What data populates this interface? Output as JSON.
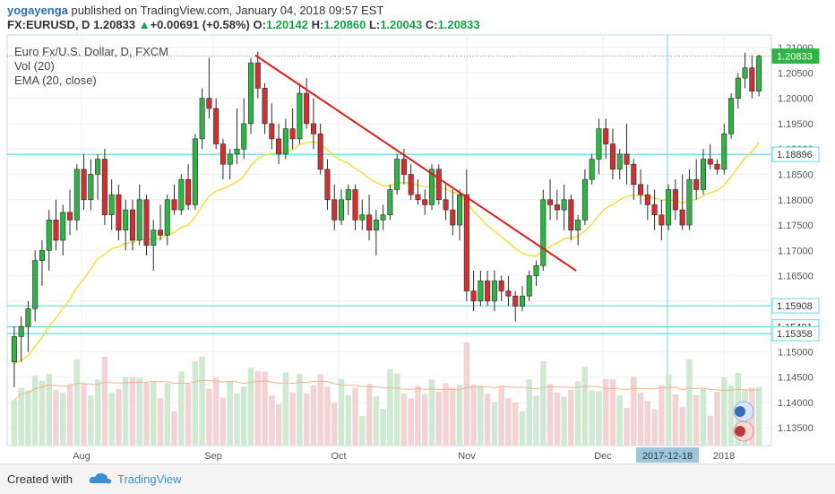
{
  "header": {
    "publisher": "yogayenga",
    "published_text": "published on TradingView.com, January 04, 2018 09:57 EST",
    "symbol": "FX:EURUSD, D",
    "last": "1.20833",
    "arrow": "▲",
    "change": "+0.00691 (+0.58%)",
    "o_label": "O:",
    "o": "1.20142",
    "h_label": "H:",
    "h": "1.20860",
    "l_label": "L:",
    "l": "1.20043",
    "c_label": "C:",
    "c": "1.20833"
  },
  "legend": {
    "title": "Euro Fx/U.S. Dollar, D, FXCM",
    "vol": "Vol (20)",
    "ema": "EMA (20, close)"
  },
  "footer": {
    "created": "Created with",
    "brand": "TradingView"
  },
  "colors": {
    "up": "#2fb344",
    "down": "#d23030",
    "ema": "#f2e04a",
    "hline": "#55e0e0",
    "trend": "#e01b1b",
    "volma": "#f0b48a"
  },
  "chart_data": {
    "type": "candlestick",
    "symbol": "EURUSD",
    "y_ticks": [
      "1.21000",
      "1.20500",
      "1.20000",
      "1.19500",
      "1.19000",
      "1.18500",
      "1.18000",
      "1.17500",
      "1.17000",
      "1.16500",
      "1.16000",
      "1.15500",
      "1.15000",
      "1.14500",
      "1.14000",
      "1.13500"
    ],
    "x_ticks": [
      "Aug",
      "Sep",
      "Oct",
      "Nov",
      "Dec",
      "2018"
    ],
    "x_highlight": "2017-12-18",
    "price_labels": [
      "1.20833",
      "1.18896",
      "1.15908",
      "1.15491",
      "1.15358"
    ],
    "horizontal_levels": [
      1.18896,
      1.15908,
      1.15491,
      1.15358
    ],
    "trendline": {
      "from": {
        "date": "2017-09-08",
        "price": 1.2085
      },
      "to": {
        "date": "2017-11-27",
        "price": 1.166
      }
    },
    "current_price": 1.20833,
    "ylim": [
      1.1315,
      1.2125
    ],
    "candles": [
      [
        1.148,
        1.155,
        1.143,
        1.153
      ],
      [
        1.153,
        1.157,
        1.148,
        1.155
      ],
      [
        1.155,
        1.16,
        1.15,
        1.1585
      ],
      [
        1.1585,
        1.17,
        1.156,
        1.168
      ],
      [
        1.168,
        1.172,
        1.163,
        1.17
      ],
      [
        1.17,
        1.178,
        1.166,
        1.176
      ],
      [
        1.176,
        1.18,
        1.17,
        1.172
      ],
      [
        1.172,
        1.179,
        1.169,
        1.1775
      ],
      [
        1.1775,
        1.182,
        1.173,
        1.176
      ],
      [
        1.176,
        1.187,
        1.174,
        1.186
      ],
      [
        1.186,
        1.189,
        1.178,
        1.18
      ],
      [
        1.18,
        1.188,
        1.178,
        1.185
      ],
      [
        1.185,
        1.189,
        1.18,
        1.188
      ],
      [
        1.188,
        1.19,
        1.175,
        1.177
      ],
      [
        1.177,
        1.184,
        1.174,
        1.181
      ],
      [
        1.181,
        1.183,
        1.172,
        1.174
      ],
      [
        1.174,
        1.18,
        1.17,
        1.178
      ],
      [
        1.178,
        1.18,
        1.17,
        1.172
      ],
      [
        1.172,
        1.183,
        1.171,
        1.18
      ],
      [
        1.18,
        1.181,
        1.169,
        1.171
      ],
      [
        1.171,
        1.176,
        1.166,
        1.174
      ],
      [
        1.174,
        1.179,
        1.172,
        1.173
      ],
      [
        1.173,
        1.181,
        1.171,
        1.18
      ],
      [
        1.18,
        1.183,
        1.177,
        1.178
      ],
      [
        1.178,
        1.185,
        1.177,
        1.184
      ],
      [
        1.184,
        1.187,
        1.178,
        1.179
      ],
      [
        1.179,
        1.193,
        1.178,
        1.192
      ],
      [
        1.192,
        1.202,
        1.19,
        1.2
      ],
      [
        1.2,
        1.208,
        1.196,
        1.198
      ],
      [
        1.198,
        1.2,
        1.19,
        1.191
      ],
      [
        1.191,
        1.192,
        1.184,
        1.187
      ],
      [
        1.187,
        1.19,
        1.184,
        1.189
      ],
      [
        1.189,
        1.198,
        1.187,
        1.19
      ],
      [
        1.19,
        1.2,
        1.188,
        1.195
      ],
      [
        1.195,
        1.208,
        1.193,
        1.207
      ],
      [
        1.207,
        1.2092,
        1.2,
        1.202
      ],
      [
        1.202,
        1.203,
        1.193,
        1.195
      ],
      [
        1.195,
        1.199,
        1.19,
        1.192
      ],
      [
        1.192,
        1.195,
        1.187,
        1.189
      ],
      [
        1.189,
        1.196,
        1.188,
        1.194
      ],
      [
        1.194,
        1.198,
        1.19,
        1.192
      ],
      [
        1.192,
        1.203,
        1.191,
        1.201
      ],
      [
        1.201,
        1.204,
        1.194,
        1.195
      ],
      [
        1.195,
        1.2,
        1.19,
        1.193
      ],
      [
        1.193,
        1.195,
        1.185,
        1.186
      ],
      [
        1.186,
        1.188,
        1.178,
        1.18
      ],
      [
        1.18,
        1.183,
        1.174,
        1.176
      ],
      [
        1.176,
        1.182,
        1.175,
        1.18
      ],
      [
        1.18,
        1.183,
        1.177,
        1.182
      ],
      [
        1.182,
        1.183,
        1.174,
        1.176
      ],
      [
        1.176,
        1.18,
        1.174,
        1.177
      ],
      [
        1.177,
        1.181,
        1.172,
        1.174
      ],
      [
        1.174,
        1.178,
        1.169,
        1.176
      ],
      [
        1.176,
        1.179,
        1.174,
        1.177
      ],
      [
        1.177,
        1.183,
        1.176,
        1.182
      ],
      [
        1.182,
        1.189,
        1.181,
        1.188
      ],
      [
        1.188,
        1.19,
        1.183,
        1.185
      ],
      [
        1.185,
        1.187,
        1.18,
        1.181
      ],
      [
        1.181,
        1.184,
        1.179,
        1.18
      ],
      [
        1.18,
        1.182,
        1.177,
        1.179
      ],
      [
        1.179,
        1.187,
        1.178,
        1.186
      ],
      [
        1.186,
        1.187,
        1.179,
        1.18
      ],
      [
        1.18,
        1.183,
        1.176,
        1.178
      ],
      [
        1.178,
        1.182,
        1.173,
        1.175
      ],
      [
        1.175,
        1.182,
        1.172,
        1.181
      ],
      [
        1.181,
        1.186,
        1.16,
        1.162
      ],
      [
        1.162,
        1.166,
        1.158,
        1.16
      ],
      [
        1.16,
        1.166,
        1.159,
        1.164
      ],
      [
        1.164,
        1.166,
        1.159,
        1.16
      ],
      [
        1.16,
        1.166,
        1.158,
        1.164
      ],
      [
        1.164,
        1.165,
        1.16,
        1.162
      ],
      [
        1.162,
        1.165,
        1.159,
        1.161
      ],
      [
        1.161,
        1.162,
        1.156,
        1.159
      ],
      [
        1.159,
        1.163,
        1.158,
        1.161
      ],
      [
        1.161,
        1.166,
        1.16,
        1.165
      ],
      [
        1.165,
        1.168,
        1.163,
        1.167
      ],
      [
        1.167,
        1.182,
        1.166,
        1.18
      ],
      [
        1.18,
        1.184,
        1.176,
        1.179
      ],
      [
        1.179,
        1.182,
        1.176,
        1.178
      ],
      [
        1.178,
        1.183,
        1.174,
        1.18
      ],
      [
        1.18,
        1.181,
        1.172,
        1.174
      ],
      [
        1.174,
        1.177,
        1.171,
        1.176
      ],
      [
        1.176,
        1.186,
        1.175,
        1.184
      ],
      [
        1.184,
        1.189,
        1.183,
        1.188
      ],
      [
        1.188,
        1.196,
        1.185,
        1.194
      ],
      [
        1.194,
        1.196,
        1.188,
        1.191
      ],
      [
        1.191,
        1.194,
        1.184,
        1.186
      ],
      [
        1.186,
        1.19,
        1.184,
        1.189
      ],
      [
        1.189,
        1.195,
        1.183,
        1.187
      ],
      [
        1.187,
        1.188,
        1.18,
        1.183
      ],
      [
        1.183,
        1.186,
        1.179,
        1.181
      ],
      [
        1.181,
        1.183,
        1.176,
        1.179
      ],
      [
        1.179,
        1.182,
        1.174,
        1.177
      ],
      [
        1.177,
        1.18,
        1.172,
        1.175
      ],
      [
        1.175,
        1.183,
        1.174,
        1.182
      ],
      [
        1.182,
        1.184,
        1.176,
        1.178
      ],
      [
        1.178,
        1.185,
        1.174,
        1.175
      ],
      [
        1.175,
        1.186,
        1.174,
        1.184
      ],
      [
        1.184,
        1.188,
        1.18,
        1.182
      ],
      [
        1.182,
        1.19,
        1.181,
        1.188
      ],
      [
        1.188,
        1.191,
        1.186,
        1.187
      ],
      [
        1.187,
        1.188,
        1.185,
        1.186
      ],
      [
        1.186,
        1.195,
        1.185,
        1.193
      ],
      [
        1.193,
        1.201,
        1.192,
        1.2
      ],
      [
        1.2,
        1.205,
        1.198,
        1.204
      ],
      [
        1.204,
        1.209,
        1.202,
        1.206
      ],
      [
        1.206,
        1.2085,
        1.2,
        1.2014
      ],
      [
        1.2014,
        1.2086,
        1.2004,
        1.2083
      ]
    ],
    "volume_ma": "line",
    "ema": "line"
  }
}
